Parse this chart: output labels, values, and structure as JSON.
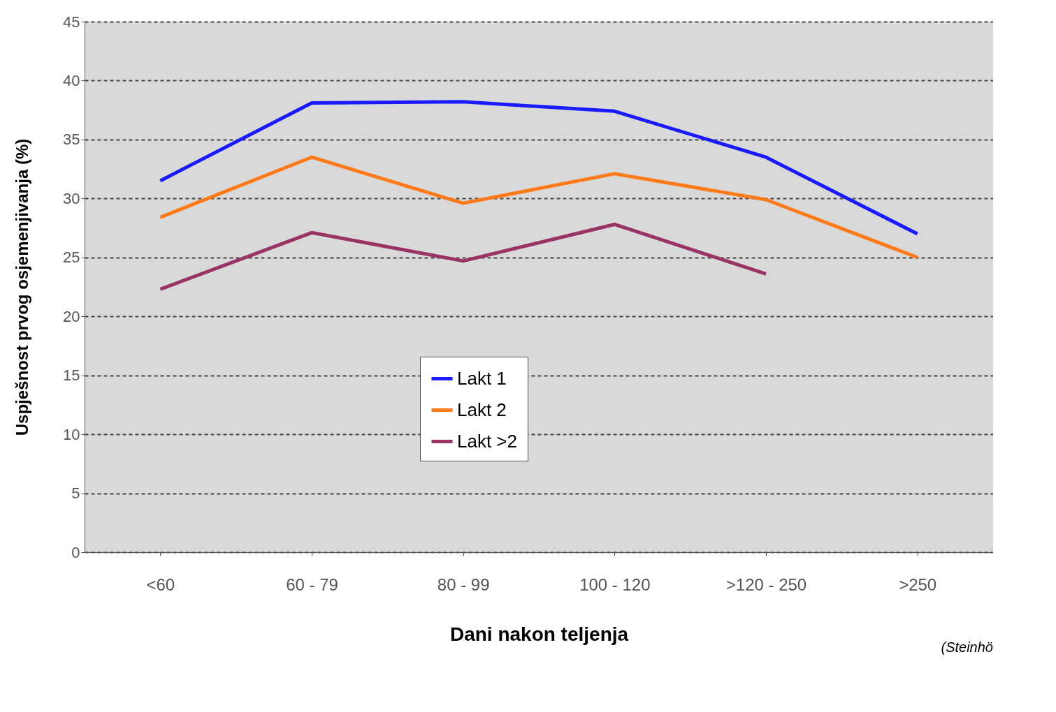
{
  "chart_data": {
    "type": "line",
    "xlabel": "Dani nakon teljenja",
    "ylabel": "Uspješnost prvog osjemenjivanja (%)",
    "categories": [
      "<60",
      "60 - 79",
      "80 - 99",
      "100 - 120",
      ">120 - 250",
      ">250"
    ],
    "series": [
      {
        "name": "Lakt 1",
        "color": "#1a1aff",
        "values": [
          31.5,
          38.1,
          38.2,
          37.4,
          33.5,
          27.0
        ]
      },
      {
        "name": "Lakt 2",
        "color": "#ff7a1a",
        "values": [
          28.4,
          33.5,
          29.6,
          32.1,
          29.9,
          25.0
        ]
      },
      {
        "name": "Lakt >2",
        "color": "#993366",
        "values": [
          22.3,
          27.1,
          24.7,
          27.8,
          23.6,
          null
        ]
      }
    ],
    "ylim": [
      0,
      45
    ],
    "yticks": [
      0,
      5,
      10,
      15,
      20,
      25,
      30,
      35,
      40,
      45
    ],
    "grid": "y",
    "legend": "bottom",
    "marker": "none",
    "line_style": "solid",
    "annotations": [
      "(Steinhö"
    ]
  }
}
